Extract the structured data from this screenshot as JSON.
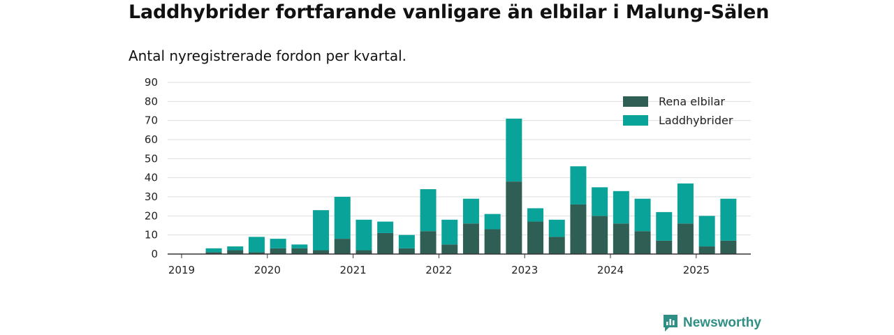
{
  "title": "Laddhybrider fortfarande vanligare än elbilar i Malung-Sälen",
  "subtitle": "Antal nyregistrerade fordon per kvartal.",
  "brand": "Newsworthy",
  "colors": {
    "rena": "#2f5e55",
    "ladd": "#0aa39a",
    "grid": "#dddddd",
    "axis": "#333333",
    "brand": "#2f8f84"
  },
  "chart_data": {
    "type": "bar",
    "stacked": true,
    "title": "Laddhybrider fortfarande vanligare än elbilar i Malung-Sälen",
    "subtitle": "Antal nyregistrerade fordon per kvartal.",
    "x_ticks": [
      "2019",
      "2020",
      "2021",
      "2022",
      "2023",
      "2024",
      "2025"
    ],
    "y_ticks": [
      0,
      10,
      20,
      30,
      40,
      50,
      60,
      70,
      80,
      90
    ],
    "ylim": [
      0,
      90
    ],
    "grid": true,
    "legend_position": "top-right",
    "categories": [
      "2019 Q2",
      "2019 Q3",
      "2019 Q4",
      "2020 Q1",
      "2020 Q2",
      "2020 Q3",
      "2020 Q4",
      "2021 Q1",
      "2021 Q2",
      "2021 Q3",
      "2021 Q4",
      "2022 Q1",
      "2022 Q2",
      "2022 Q3",
      "2022 Q4",
      "2023 Q1",
      "2023 Q2",
      "2023 Q3",
      "2023 Q4",
      "2024 Q1",
      "2024 Q2",
      "2024 Q3",
      "2024 Q4",
      "2025 Q1",
      "2025 Q2"
    ],
    "series": [
      {
        "name": "Rena elbilar",
        "values": [
          1,
          2,
          1,
          3,
          3,
          2,
          8,
          2,
          11,
          3,
          12,
          5,
          16,
          13,
          38,
          17,
          9,
          26,
          20,
          16,
          12,
          7,
          16,
          4,
          7
        ]
      },
      {
        "name": "Laddhybrider",
        "values": [
          2,
          2,
          8,
          5,
          2,
          21,
          22,
          16,
          6,
          7,
          22,
          13,
          13,
          8,
          33,
          7,
          9,
          20,
          15,
          17,
          17,
          15,
          21,
          16,
          22
        ]
      }
    ]
  }
}
